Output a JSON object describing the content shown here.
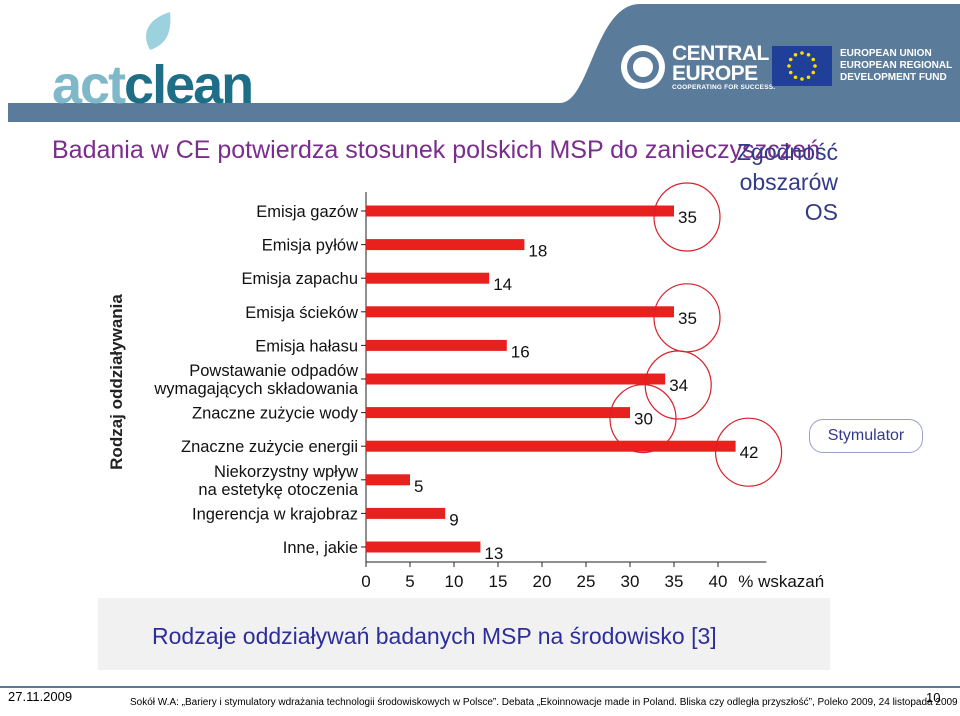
{
  "header": {
    "logo": {
      "part1": "act",
      "part2": "clean"
    },
    "ce_logo": {
      "title_line1": "CENTRAL",
      "title_line2": "EUROPE",
      "subtitle": "COOPERATING FOR SUCCESS."
    },
    "eu_logo": {
      "line1": "EUROPEAN UNION",
      "line2": "EUROPEAN REGIONAL",
      "line3": "DEVELOPMENT FUND"
    },
    "colors": {
      "banner": "#5b7b9b",
      "logo_act": "#7fb8c8",
      "logo_clean": "#1d6e86"
    }
  },
  "slide": {
    "title": "Badania w CE potwierdza stosunek polskich MSP do zanieczyszczeń",
    "side_label": [
      "Zgodność",
      "obszarów",
      "OS"
    ],
    "stimulus_label": "Stymulator",
    "caption": "Rodzaje oddziaływań badanych MSP na środowisko [3]",
    "date": "27.11.2009",
    "citation": "Sokół W.A: „Bariery i stymulatory wdrażania technologii środowiskowych w Polsce”. Debata „Ekoinnowacje made in Poland. Bliska czy odległa przyszłość”, Poleko 2009, 24 listopada 2009",
    "page_number": "10"
  },
  "chart_data": {
    "type": "bar",
    "orientation": "horizontal",
    "ylabel": "Rodzaj oddziaływania",
    "xlabel": "% wskazań",
    "xlim": [
      0,
      40
    ],
    "xticks": [
      0,
      5,
      10,
      15,
      20,
      25,
      30,
      35,
      40
    ],
    "bar_color": "#e8201e",
    "categories": [
      [
        "Emisja gazów"
      ],
      [
        "Emisja pyłów"
      ],
      [
        "Emisja zapachu"
      ],
      [
        "Emisja ścieków"
      ],
      [
        "Emisja hałasu"
      ],
      [
        "Powstawanie odpadów",
        "wymagających składowania"
      ],
      [
        "Znaczne zużycie wody"
      ],
      [
        "Znaczne zużycie energii"
      ],
      [
        "Niekorzystny wpływ",
        "na estetykę otoczenia"
      ],
      [
        "Ingerencja w krajobraz"
      ],
      [
        "Inne, jakie"
      ]
    ],
    "values": [
      35,
      18,
      14,
      35,
      16,
      34,
      30,
      42,
      5,
      9,
      13
    ],
    "circled": [
      0,
      3,
      5,
      6,
      7
    ]
  }
}
